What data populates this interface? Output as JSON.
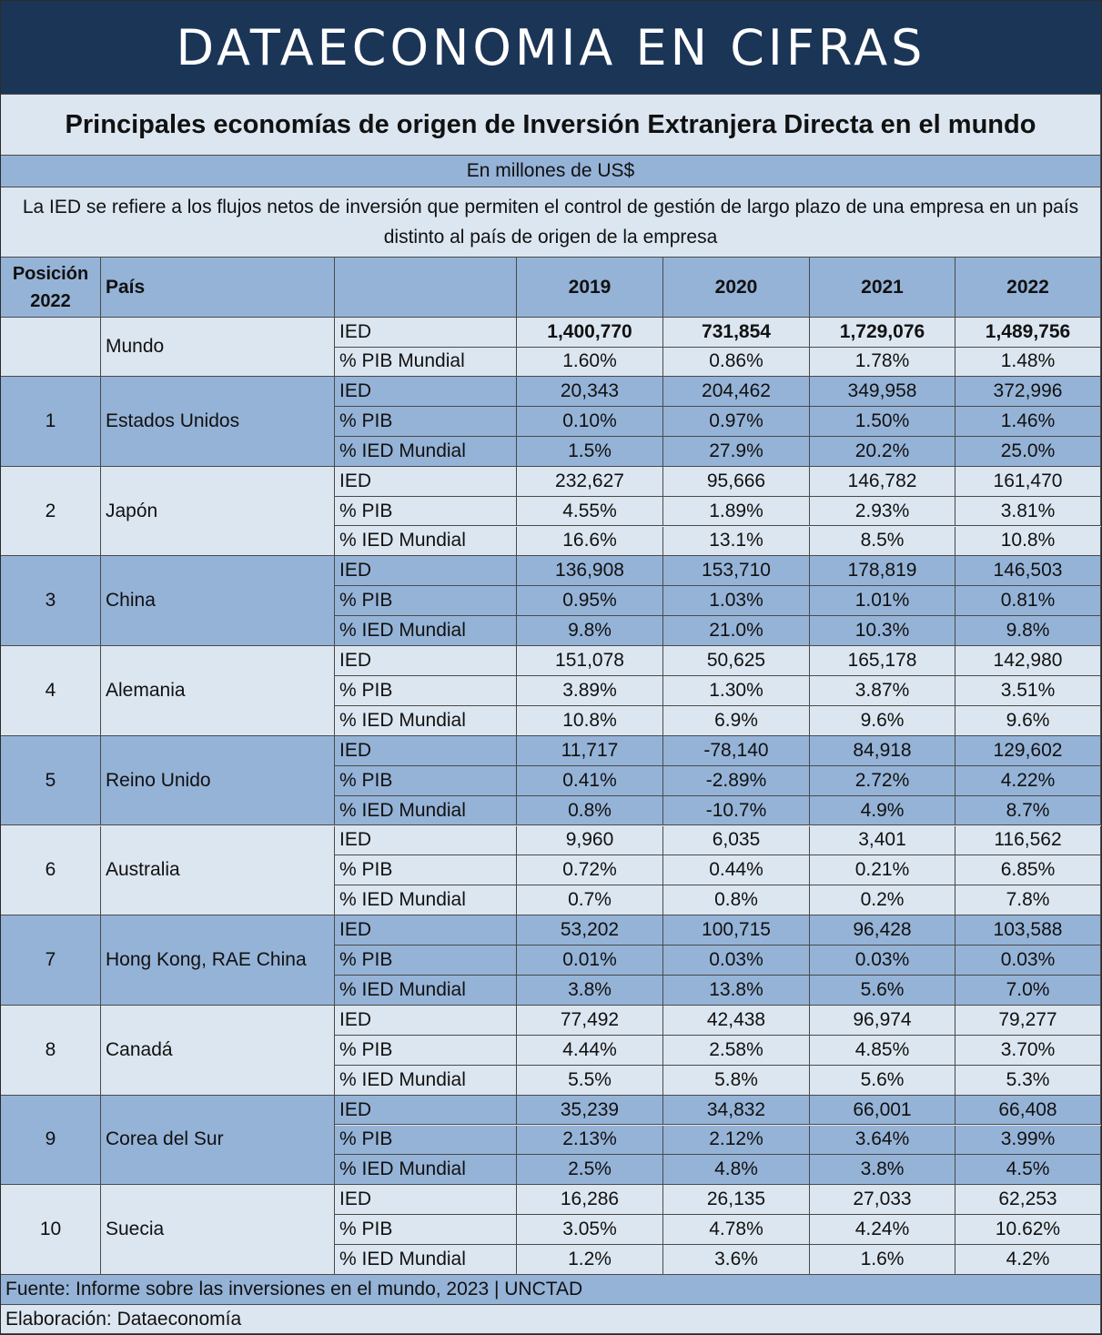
{
  "header": {
    "title": "DATAECONOMIA EN CIFRAS"
  },
  "subtitle": "Principales economías de origen de Inversión Extranjera Directa en el mundo",
  "units": "En millones de US$",
  "description": "La IED se refiere a los flujos netos de inversión que permiten el control de gestión de largo plazo de una empresa en un país distinto al país de origen de la empresa",
  "table": {
    "columns": {
      "position": "Posición 2022",
      "country": "País",
      "years": [
        "2019",
        "2020",
        "2021",
        "2022"
      ]
    },
    "groups": [
      {
        "country": "Mundo",
        "rows": [
          {
            "metric": "IED",
            "bold": true,
            "values": [
              "1,400,770",
              "731,854",
              "1,729,076",
              "1,489,756"
            ]
          },
          {
            "metric": "% PIB Mundial",
            "values": [
              "1.60%",
              "0.86%",
              "1.78%",
              "1.48%"
            ]
          }
        ]
      },
      {
        "position": 1,
        "country": "Estados Unidos",
        "rows": [
          {
            "metric": "IED",
            "values": [
              "20,343",
              "204,462",
              "349,958",
              "372,996"
            ]
          },
          {
            "metric": "% PIB",
            "values": [
              "0.10%",
              "0.97%",
              "1.50%",
              "1.46%"
            ]
          },
          {
            "metric": "% IED Mundial",
            "values": [
              "1.5%",
              "27.9%",
              "20.2%",
              "25.0%"
            ]
          }
        ]
      },
      {
        "position": 2,
        "country": "Japón",
        "rows": [
          {
            "metric": "IED",
            "values": [
              "232,627",
              "95,666",
              "146,782",
              "161,470"
            ]
          },
          {
            "metric": "% PIB",
            "values": [
              "4.55%",
              "1.89%",
              "2.93%",
              "3.81%"
            ]
          },
          {
            "metric": "% IED Mundial",
            "values": [
              "16.6%",
              "13.1%",
              "8.5%",
              "10.8%"
            ]
          }
        ]
      },
      {
        "position": 3,
        "country": "China",
        "rows": [
          {
            "metric": "IED",
            "values": [
              "136,908",
              "153,710",
              "178,819",
              "146,503"
            ]
          },
          {
            "metric": "% PIB",
            "values": [
              "0.95%",
              "1.03%",
              "1.01%",
              "0.81%"
            ]
          },
          {
            "metric": "% IED Mundial",
            "values": [
              "9.8%",
              "21.0%",
              "10.3%",
              "9.8%"
            ]
          }
        ]
      },
      {
        "position": 4,
        "country": "Alemania",
        "rows": [
          {
            "metric": "IED",
            "values": [
              "151,078",
              "50,625",
              "165,178",
              "142,980"
            ]
          },
          {
            "metric": "% PIB",
            "values": [
              "3.89%",
              "1.30%",
              "3.87%",
              "3.51%"
            ]
          },
          {
            "metric": "% IED Mundial",
            "values": [
              "10.8%",
              "6.9%",
              "9.6%",
              "9.6%"
            ]
          }
        ]
      },
      {
        "position": 5,
        "country": "Reino Unido",
        "rows": [
          {
            "metric": "IED",
            "values": [
              "11,717",
              "-78,140",
              "84,918",
              "129,602"
            ]
          },
          {
            "metric": "% PIB",
            "values": [
              "0.41%",
              "-2.89%",
              "2.72%",
              "4.22%"
            ]
          },
          {
            "metric": "% IED Mundial",
            "values": [
              "0.8%",
              "-10.7%",
              "4.9%",
              "8.7%"
            ]
          }
        ]
      },
      {
        "position": 6,
        "country": "Australia",
        "rows": [
          {
            "metric": "IED",
            "values": [
              "9,960",
              "6,035",
              "3,401",
              "116,562"
            ]
          },
          {
            "metric": "% PIB",
            "values": [
              "0.72%",
              "0.44%",
              "0.21%",
              "6.85%"
            ]
          },
          {
            "metric": "% IED Mundial",
            "values": [
              "0.7%",
              "0.8%",
              "0.2%",
              "7.8%"
            ]
          }
        ]
      },
      {
        "position": 7,
        "country": "Hong Kong, RAE China",
        "rows": [
          {
            "metric": "IED",
            "values": [
              "53,202",
              "100,715",
              "96,428",
              "103,588"
            ]
          },
          {
            "metric": "% PIB",
            "values": [
              "0.01%",
              "0.03%",
              "0.03%",
              "0.03%"
            ]
          },
          {
            "metric": "% IED Mundial",
            "values": [
              "3.8%",
              "13.8%",
              "5.6%",
              "7.0%"
            ]
          }
        ]
      },
      {
        "position": 8,
        "country": "Canadá",
        "rows": [
          {
            "metric": "IED",
            "values": [
              "77,492",
              "42,438",
              "96,974",
              "79,277"
            ]
          },
          {
            "metric": "% PIB",
            "values": [
              "4.44%",
              "2.58%",
              "4.85%",
              "3.70%"
            ]
          },
          {
            "metric": "% IED Mundial",
            "values": [
              "5.5%",
              "5.8%",
              "5.6%",
              "5.3%"
            ]
          }
        ]
      },
      {
        "position": 9,
        "country": "Corea del Sur",
        "rows": [
          {
            "metric": "IED",
            "values": [
              "35,239",
              "34,832",
              "66,001",
              "66,408"
            ]
          },
          {
            "metric": "% PIB",
            "values": [
              "2.13%",
              "2.12%",
              "3.64%",
              "3.99%"
            ]
          },
          {
            "metric": "% IED Mundial",
            "values": [
              "2.5%",
              "4.8%",
              "3.8%",
              "4.5%"
            ]
          }
        ]
      },
      {
        "position": 10,
        "country": "Suecia",
        "rows": [
          {
            "metric": "IED",
            "values": [
              "16,286",
              "26,135",
              "27,033",
              "62,253"
            ]
          },
          {
            "metric": "% PIB",
            "values": [
              "3.05%",
              "4.78%",
              "4.24%",
              "10.62%"
            ]
          },
          {
            "metric": "% IED Mundial",
            "values": [
              "1.2%",
              "3.6%",
              "1.6%",
              "4.2%"
            ]
          }
        ]
      }
    ]
  },
  "footer": {
    "source": "Fuente: Informe sobre las inversiones en el mundo, 2023 | UNCTAD",
    "credit": "Elaboración: Dataeconomía"
  }
}
